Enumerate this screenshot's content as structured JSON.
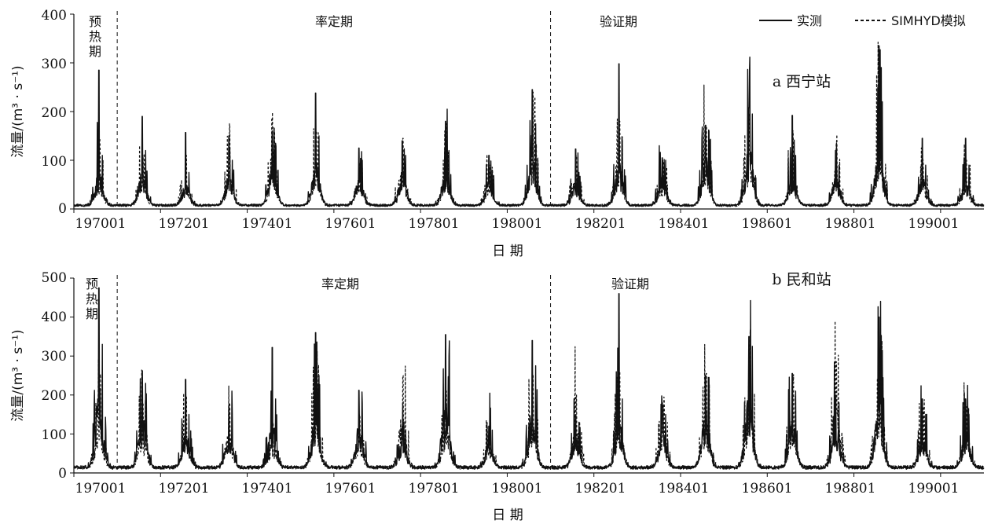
{
  "legend": [
    {
      "label": "实测",
      "style": "solid"
    },
    {
      "label": "SIMHYD模拟",
      "style": "dashed"
    }
  ],
  "chart_data": [
    {
      "type": "line",
      "title": "a 西宁站",
      "xlabel": "日 期",
      "ylabel": "流量/(m³ · s⁻¹)",
      "ylim": [
        0,
        400
      ],
      "yticks": [
        "0",
        "100",
        "200",
        "300",
        "400"
      ],
      "xticks": [
        "197001",
        "197201",
        "197401",
        "197601",
        "197801",
        "198001",
        "198201",
        "198401",
        "198601",
        "198801",
        "199001"
      ],
      "x_range": [
        "1970-01",
        "1991-01"
      ],
      "periods": [
        {
          "label": "预热期",
          "start": "1970-01",
          "end": "1971-01"
        },
        {
          "label": "率定期",
          "start": "1971-01",
          "end": "1981-01"
        },
        {
          "label": "验证期",
          "start": "1981-01",
          "end": "1991-01"
        }
      ],
      "grid": false,
      "legend_position": "top-right",
      "baseflow": 8,
      "series": [
        {
          "name": "实测",
          "style": "solid",
          "annual_peaks": [
            285,
            190,
            157,
            150,
            160,
            238,
            125,
            140,
            180,
            110,
            245,
            123,
            298,
            105,
            172,
            208,
            192,
            120,
            335,
            145
          ],
          "secondary_peaks": [
            110,
            120,
            75,
            100,
            135,
            150,
            100,
            110,
            120,
            80,
            175,
            75,
            140,
            100,
            160,
            195,
            110,
            90,
            220,
            90
          ]
        },
        {
          "name": "SIMHYD模拟",
          "style": "dashed",
          "annual_peaks": [
            145,
            110,
            110,
            175,
            120,
            160,
            95,
            145,
            175,
            90,
            240,
            110,
            180,
            100,
            170,
            195,
            160,
            135,
            240,
            100
          ],
          "secondary_peaks": [
            90,
            100,
            70,
            110,
            120,
            130,
            90,
            130,
            115,
            75,
            190,
            95,
            130,
            90,
            165,
            175,
            125,
            120,
            200,
            85
          ]
        }
      ]
    },
    {
      "type": "line",
      "title": "b 民和站",
      "xlabel": "日 期",
      "ylabel": "流量/(m³ · s⁻¹)",
      "ylim": [
        0,
        500
      ],
      "yticks": [
        "0",
        "100",
        "200",
        "300",
        "400",
        "500"
      ],
      "xticks": [
        "197001",
        "197201",
        "197401",
        "197601",
        "197801",
        "198001",
        "198201",
        "198401",
        "198601",
        "198801",
        "199001"
      ],
      "x_range": [
        "1970-01",
        "1991-01"
      ],
      "periods": [
        {
          "label": "预热期",
          "start": "1970-01",
          "end": "1971-01"
        },
        {
          "label": "率定期",
          "start": "1971-01",
          "end": "1981-01"
        },
        {
          "label": "验证期",
          "start": "1981-01",
          "end": "1991-01"
        }
      ],
      "grid": false,
      "legend_position": "top-right",
      "baseflow": 15,
      "series": [
        {
          "name": "实测",
          "style": "solid",
          "annual_peaks": [
            475,
            262,
            240,
            170,
            322,
            360,
            212,
            120,
            355,
            120,
            340,
            145,
            460,
            180,
            250,
            350,
            255,
            200,
            400,
            190
          ],
          "secondary_peaks": [
            330,
            230,
            150,
            150,
            190,
            250,
            180,
            110,
            300,
            110,
            275,
            130,
            190,
            150,
            245,
            325,
            210,
            180,
            315,
            150
          ]
        },
        {
          "name": "SIMHYD模拟",
          "style": "dashed",
          "annual_peaks": [
            240,
            180,
            195,
            180,
            130,
            290,
            150,
            250,
            210,
            110,
            250,
            200,
            260,
            175,
            255,
            320,
            230,
            285,
            320,
            170
          ],
          "secondary_peaks": [
            180,
            160,
            140,
            160,
            120,
            240,
            130,
            230,
            190,
            100,
            220,
            180,
            200,
            160,
            215,
            280,
            200,
            280,
            280,
            150
          ]
        }
      ]
    }
  ]
}
